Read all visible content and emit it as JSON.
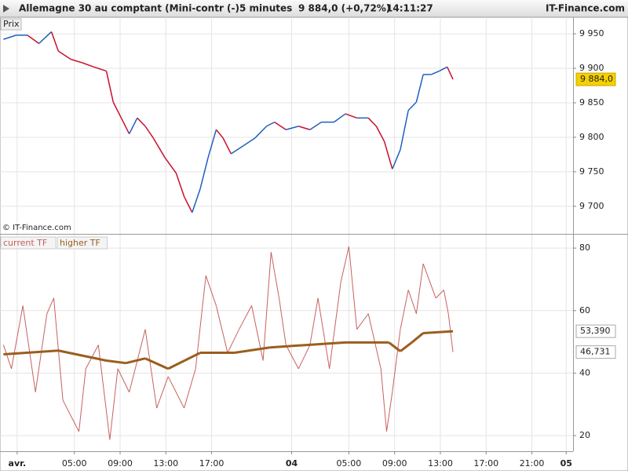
{
  "header": {
    "instrument": "Allemagne 30 au comptant (Mini-contr (-)",
    "interval": "5 minutes",
    "quote": "9 884,0 (+0,72%)",
    "time": "14:11:27",
    "brand": "IT-Finance.com"
  },
  "chart_data": [
    {
      "type": "line",
      "panel_label": "Prix",
      "watermark": "© IT-Finance.com",
      "xlim": [
        -1.5,
        48.6
      ],
      "ylim": [
        9660,
        9974
      ],
      "yticks": [
        {
          "value": 9700,
          "label": "9 700"
        },
        {
          "value": 9750,
          "label": "9 750"
        },
        {
          "value": 9800,
          "label": "9 800"
        },
        {
          "value": 9850,
          "label": "9 850"
        },
        {
          "value": 9900,
          "label": "9 900"
        },
        {
          "value": 9950,
          "label": "9 950"
        }
      ],
      "grid": true,
      "colors": {
        "up": "#1f5fbf",
        "down": "#c8102e"
      },
      "series": [
        {
          "x": [
            -1.2,
            -0.1,
            0.9,
            1.9,
            3.0,
            3.6,
            4.7,
            5.7,
            6.7,
            7.8,
            8.4,
            9.1,
            9.8,
            10.5,
            11.2,
            11.9,
            12.9,
            13.9,
            14.6,
            15.3,
            16.0,
            16.7,
            17.4,
            18.0,
            18.7,
            19.8,
            20.8,
            21.8,
            22.5,
            23.5,
            24.6,
            25.6,
            26.6,
            27.7,
            28.7,
            29.7,
            30.7,
            31.4,
            32.1,
            32.8,
            33.5,
            34.2,
            34.9,
            35.5,
            36.2,
            36.9,
            37.6,
            38.1
          ],
          "values": [
            9942,
            9948,
            9948,
            9936,
            9953,
            9925,
            9913,
            9908,
            9902,
            9896,
            9851,
            9828,
            9805,
            9828,
            9816,
            9799,
            9771,
            9748,
            9714,
            9691,
            9725,
            9771,
            9811,
            9799,
            9776,
            9788,
            9799,
            9816,
            9822,
            9811,
            9816,
            9811,
            9822,
            9822,
            9834,
            9828,
            9828,
            9816,
            9794,
            9754,
            9782,
            9839,
            9851,
            9891,
            9891,
            9896,
            9902,
            9884
          ],
          "last_label": {
            "value": 9884,
            "label": "9 884,0"
          },
          "tag_color": "#f5d000"
        }
      ]
    },
    {
      "type": "line",
      "xlim": [
        -1.5,
        48.6
      ],
      "ylim": [
        15,
        84.3
      ],
      "yticks": [
        20,
        40,
        60,
        80
      ],
      "grid": true,
      "xticks": [
        {
          "value": 0,
          "label": "avr."
        },
        {
          "value": 5,
          "label": "05:00"
        },
        {
          "value": 9,
          "label": "09:00"
        },
        {
          "value": 13,
          "label": "13:00"
        },
        {
          "value": 17,
          "label": "17:00"
        },
        {
          "value": 24,
          "label": "04"
        },
        {
          "value": 29,
          "label": "05:00"
        },
        {
          "value": 33,
          "label": "09:00"
        },
        {
          "value": 37,
          "label": "13:00"
        },
        {
          "value": 41,
          "label": "17:00"
        },
        {
          "value": 45,
          "label": "21:00"
        },
        {
          "value": 48,
          "label": "05"
        }
      ],
      "series": [
        {
          "name": "current TF",
          "color": "#c86060",
          "width": 1,
          "x": [
            -1.2,
            -0.5,
            0.5,
            1.6,
            2.6,
            3.2,
            4.0,
            5.4,
            6.0,
            7.1,
            8.1,
            8.8,
            9.8,
            11.2,
            12.2,
            13.2,
            14.6,
            15.6,
            16.5,
            17.4,
            18.4,
            19.4,
            20.5,
            21.5,
            22.2,
            22.9,
            23.5,
            24.6,
            25.6,
            26.3,
            27.3,
            28.3,
            29.0,
            29.7,
            30.7,
            31.8,
            32.3,
            32.8,
            33.5,
            34.2,
            34.9,
            35.5,
            36.6,
            37.3,
            37.7,
            38.1
          ],
          "values": [
            49,
            41.4,
            61.6,
            33.9,
            59,
            64,
            31.3,
            21.3,
            41.4,
            49,
            18.7,
            41.4,
            33.9,
            54,
            28.8,
            38.9,
            28.8,
            41.4,
            71.2,
            61.6,
            46.5,
            54,
            61.6,
            44,
            78.7,
            64,
            49,
            41.4,
            49,
            64,
            41.4,
            69.2,
            80.5,
            54,
            59,
            41.4,
            21.3,
            33.9,
            54,
            66.6,
            59,
            75,
            64,
            66.6,
            59,
            46.731
          ],
          "last_label": {
            "value": 46.731,
            "label": "46,731"
          }
        },
        {
          "name": "higher TF",
          "color": "#9a5e1e",
          "width": 3,
          "x": [
            -1.2,
            3.6,
            7.8,
            9.5,
            11.2,
            13.2,
            16.0,
            19.0,
            22.1,
            25.3,
            28.7,
            32.5,
            33.5,
            34.5,
            35.5,
            38.1
          ],
          "values": [
            46,
            47.2,
            44,
            43.2,
            44.7,
            41.4,
            46.5,
            46.5,
            48.2,
            49,
            49.8,
            49.8,
            47,
            49.8,
            52.8,
            53.39
          ],
          "last_label": {
            "value": 53.39,
            "label": "53,390"
          }
        }
      ]
    }
  ]
}
